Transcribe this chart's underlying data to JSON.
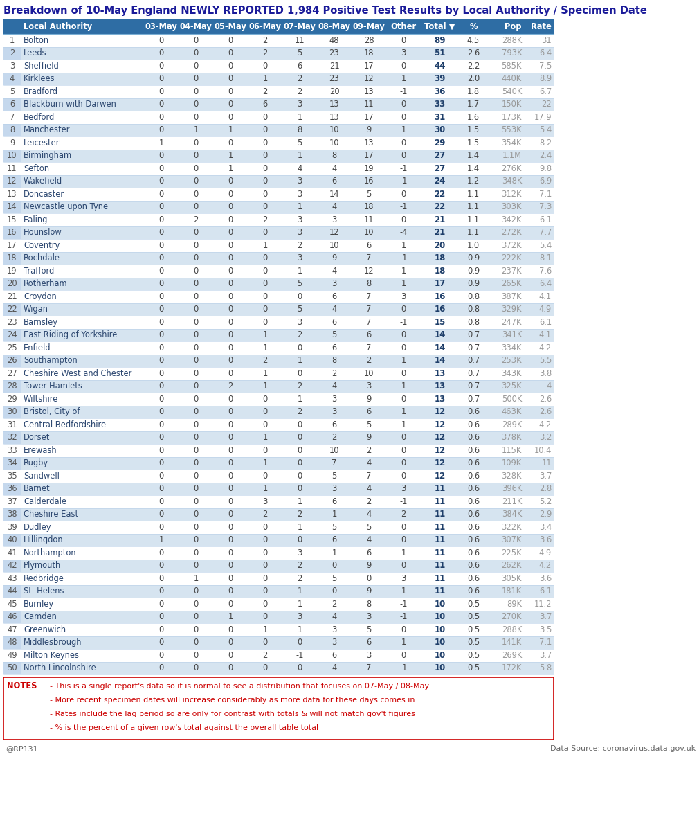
{
  "title": "Breakdown of 10-May England NEWLY REPORTED 1,984 Positive Test Results by Local Authority / Specimen Date",
  "columns": [
    "",
    "Local Authority",
    "03-May",
    "04-May",
    "05-May",
    "06-May",
    "07-May",
    "08-May",
    "09-May",
    "Other",
    "Total ▼",
    "%",
    "Pop",
    "Rate"
  ],
  "rows": [
    [
      1,
      "Bolton",
      0,
      0,
      0,
      2,
      11,
      48,
      28,
      0,
      89,
      4.5,
      "288K",
      31
    ],
    [
      2,
      "Leeds",
      0,
      0,
      0,
      2,
      5,
      23,
      18,
      3,
      51,
      2.6,
      "793K",
      6.4
    ],
    [
      3,
      "Sheffield",
      0,
      0,
      0,
      0,
      6,
      21,
      17,
      0,
      44,
      2.2,
      "585K",
      7.5
    ],
    [
      4,
      "Kirklees",
      0,
      0,
      0,
      1,
      2,
      23,
      12,
      1,
      39,
      2.0,
      "440K",
      8.9
    ],
    [
      5,
      "Bradford",
      0,
      0,
      0,
      2,
      2,
      20,
      13,
      -1,
      36,
      1.8,
      "540K",
      6.7
    ],
    [
      6,
      "Blackburn with Darwen",
      0,
      0,
      0,
      6,
      3,
      13,
      11,
      0,
      33,
      1.7,
      "150K",
      22
    ],
    [
      7,
      "Bedford",
      0,
      0,
      0,
      0,
      1,
      13,
      17,
      0,
      31,
      1.6,
      "173K",
      17.9
    ],
    [
      8,
      "Manchester",
      0,
      1,
      1,
      0,
      8,
      10,
      9,
      1,
      30,
      1.5,
      "553K",
      5.4
    ],
    [
      9,
      "Leicester",
      1,
      0,
      0,
      0,
      5,
      10,
      13,
      0,
      29,
      1.5,
      "354K",
      8.2
    ],
    [
      10,
      "Birmingham",
      0,
      0,
      1,
      0,
      1,
      8,
      17,
      0,
      27,
      1.4,
      "1.1M",
      2.4
    ],
    [
      11,
      "Sefton",
      0,
      0,
      1,
      0,
      4,
      4,
      19,
      -1,
      27,
      1.4,
      "276K",
      9.8
    ],
    [
      12,
      "Wakefield",
      0,
      0,
      0,
      0,
      3,
      6,
      16,
      -1,
      24,
      1.2,
      "348K",
      6.9
    ],
    [
      13,
      "Doncaster",
      0,
      0,
      0,
      0,
      3,
      14,
      5,
      0,
      22,
      1.1,
      "312K",
      7.1
    ],
    [
      14,
      "Newcastle upon Tyne",
      0,
      0,
      0,
      0,
      1,
      4,
      18,
      -1,
      22,
      1.1,
      "303K",
      7.3
    ],
    [
      15,
      "Ealing",
      0,
      2,
      0,
      2,
      3,
      3,
      11,
      0,
      21,
      1.1,
      "342K",
      6.1
    ],
    [
      16,
      "Hounslow",
      0,
      0,
      0,
      0,
      3,
      12,
      10,
      -4,
      21,
      1.1,
      "272K",
      7.7
    ],
    [
      17,
      "Coventry",
      0,
      0,
      0,
      1,
      2,
      10,
      6,
      1,
      20,
      1.0,
      "372K",
      5.4
    ],
    [
      18,
      "Rochdale",
      0,
      0,
      0,
      0,
      3,
      9,
      7,
      -1,
      18,
      0.9,
      "222K",
      8.1
    ],
    [
      19,
      "Trafford",
      0,
      0,
      0,
      0,
      1,
      4,
      12,
      1,
      18,
      0.9,
      "237K",
      7.6
    ],
    [
      20,
      "Rotherham",
      0,
      0,
      0,
      0,
      5,
      3,
      8,
      1,
      17,
      0.9,
      "265K",
      6.4
    ],
    [
      21,
      "Croydon",
      0,
      0,
      0,
      0,
      0,
      6,
      7,
      3,
      16,
      0.8,
      "387K",
      4.1
    ],
    [
      22,
      "Wigan",
      0,
      0,
      0,
      0,
      5,
      4,
      7,
      0,
      16,
      0.8,
      "329K",
      4.9
    ],
    [
      23,
      "Barnsley",
      0,
      0,
      0,
      0,
      3,
      6,
      7,
      -1,
      15,
      0.8,
      "247K",
      6.1
    ],
    [
      24,
      "East Riding of Yorkshire",
      0,
      0,
      0,
      1,
      2,
      5,
      6,
      0,
      14,
      0.7,
      "341K",
      4.1
    ],
    [
      25,
      "Enfield",
      0,
      0,
      0,
      1,
      0,
      6,
      7,
      0,
      14,
      0.7,
      "334K",
      4.2
    ],
    [
      26,
      "Southampton",
      0,
      0,
      0,
      2,
      1,
      8,
      2,
      1,
      14,
      0.7,
      "253K",
      5.5
    ],
    [
      27,
      "Cheshire West and Chester",
      0,
      0,
      0,
      1,
      0,
      2,
      10,
      0,
      13,
      0.7,
      "343K",
      3.8
    ],
    [
      28,
      "Tower Hamlets",
      0,
      0,
      2,
      1,
      2,
      4,
      3,
      1,
      13,
      0.7,
      "325K",
      4
    ],
    [
      29,
      "Wiltshire",
      0,
      0,
      0,
      0,
      1,
      3,
      9,
      0,
      13,
      0.7,
      "500K",
      2.6
    ],
    [
      30,
      "Bristol, City of",
      0,
      0,
      0,
      0,
      2,
      3,
      6,
      1,
      12,
      0.6,
      "463K",
      2.6
    ],
    [
      31,
      "Central Bedfordshire",
      0,
      0,
      0,
      0,
      0,
      6,
      5,
      1,
      12,
      0.6,
      "289K",
      4.2
    ],
    [
      32,
      "Dorset",
      0,
      0,
      0,
      1,
      0,
      2,
      9,
      0,
      12,
      0.6,
      "378K",
      3.2
    ],
    [
      33,
      "Erewash",
      0,
      0,
      0,
      0,
      0,
      10,
      2,
      0,
      12,
      0.6,
      "115K",
      10.4
    ],
    [
      34,
      "Rugby",
      0,
      0,
      0,
      1,
      0,
      7,
      4,
      0,
      12,
      0.6,
      "109K",
      11
    ],
    [
      35,
      "Sandwell",
      0,
      0,
      0,
      0,
      0,
      5,
      7,
      0,
      12,
      0.6,
      "328K",
      3.7
    ],
    [
      36,
      "Barnet",
      0,
      0,
      0,
      1,
      0,
      3,
      4,
      3,
      11,
      0.6,
      "396K",
      2.8
    ],
    [
      37,
      "Calderdale",
      0,
      0,
      0,
      3,
      1,
      6,
      2,
      -1,
      11,
      0.6,
      "211K",
      5.2
    ],
    [
      38,
      "Cheshire East",
      0,
      0,
      0,
      2,
      2,
      1,
      4,
      2,
      11,
      0.6,
      "384K",
      2.9
    ],
    [
      39,
      "Dudley",
      0,
      0,
      0,
      0,
      1,
      5,
      5,
      0,
      11,
      0.6,
      "322K",
      3.4
    ],
    [
      40,
      "Hillingdon",
      1,
      0,
      0,
      0,
      0,
      6,
      4,
      0,
      11,
      0.6,
      "307K",
      3.6
    ],
    [
      41,
      "Northampton",
      0,
      0,
      0,
      0,
      3,
      1,
      6,
      1,
      11,
      0.6,
      "225K",
      4.9
    ],
    [
      42,
      "Plymouth",
      0,
      0,
      0,
      0,
      2,
      0,
      9,
      0,
      11,
      0.6,
      "262K",
      4.2
    ],
    [
      43,
      "Redbridge",
      0,
      1,
      0,
      0,
      2,
      5,
      0,
      3,
      11,
      0.6,
      "305K",
      3.6
    ],
    [
      44,
      "St. Helens",
      0,
      0,
      0,
      0,
      1,
      0,
      9,
      1,
      11,
      0.6,
      "181K",
      6.1
    ],
    [
      45,
      "Burnley",
      0,
      0,
      0,
      0,
      1,
      2,
      8,
      -1,
      10,
      0.5,
      "89K",
      11.2
    ],
    [
      46,
      "Camden",
      0,
      0,
      1,
      0,
      3,
      4,
      3,
      -1,
      10,
      0.5,
      "270K",
      3.7
    ],
    [
      47,
      "Greenwich",
      0,
      0,
      0,
      1,
      1,
      3,
      5,
      0,
      10,
      0.5,
      "288K",
      3.5
    ],
    [
      48,
      "Middlesbrough",
      0,
      0,
      0,
      0,
      0,
      3,
      6,
      1,
      10,
      0.5,
      "141K",
      7.1
    ],
    [
      49,
      "Milton Keynes",
      0,
      0,
      0,
      2,
      -1,
      6,
      3,
      0,
      10,
      0.5,
      "269K",
      3.7
    ],
    [
      50,
      "North Lincolnshire",
      0,
      0,
      0,
      0,
      0,
      4,
      7,
      -1,
      10,
      0.5,
      "172K",
      5.8
    ]
  ],
  "header_bg": "#2E6DA4",
  "header_fg": "#FFFFFF",
  "row_bg_odd": "#FFFFFF",
  "row_bg_even": "#D6E4F0",
  "idx_bg_odd": "#FFFFFF",
  "idx_bg_even": "#C5D8ED",
  "total_col_fg": "#1F3F6A",
  "pop_rate_fg": "#999999",
  "notes_text": [
    "- This is a single report's data so it is normal to see a distribution that focuses on 07-May / 08-May.",
    "- More recent specimen dates will increase considerably as more data for these days comes in",
    "- Rates include the lag period so are only for contrast with totals & will not match gov't figures",
    "- % is the percent of a given row's total against the overall table total"
  ],
  "footer_left": "@RP131",
  "footer_right": "Data Source: coronavirus.data.gov.uk",
  "title_color": "#1A1A99",
  "name_col_color": "#2C4770"
}
